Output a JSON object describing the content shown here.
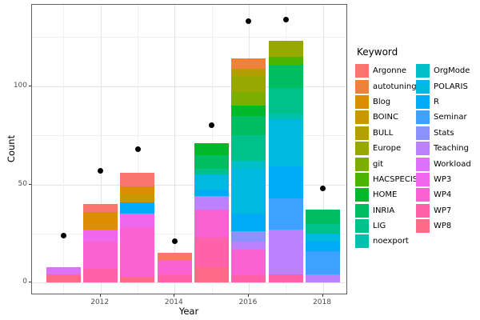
{
  "figure": {
    "x_axis": {
      "label": "Year",
      "major_ticks": [
        2012,
        2014,
        2016,
        2018
      ],
      "minor_ticks": [
        2011,
        2013,
        2015,
        2017
      ],
      "range": [
        2010.15,
        2018.68
      ]
    },
    "y_axis": {
      "label": "Count",
      "major_ticks": [
        0,
        50,
        100
      ],
      "minor_ticks": [
        25,
        75,
        125
      ],
      "range": [
        -6.4,
        141.4
      ]
    },
    "legend": {
      "title": "Keyword",
      "items": [
        {
          "name": "Argonne",
          "color": "#F8766D"
        },
        {
          "name": "autotuning",
          "color": "#EC823C"
        },
        {
          "name": "Blog",
          "color": "#DB8E00"
        },
        {
          "name": "BOINC",
          "color": "#C99800"
        },
        {
          "name": "BULL",
          "color": "#B3A000"
        },
        {
          "name": "Europe",
          "color": "#99A800"
        },
        {
          "name": "git",
          "color": "#7CAE00"
        },
        {
          "name": "HACSPECIS",
          "color": "#49B500"
        },
        {
          "name": "HOME",
          "color": "#00B92A"
        },
        {
          "name": "INRIA",
          "color": "#00BD61"
        },
        {
          "name": "LIG",
          "color": "#00C08B"
        },
        {
          "name": "noexport",
          "color": "#00C1AD"
        },
        {
          "name": "OrgMode",
          "color": "#00BFC8"
        },
        {
          "name": "POLARIS",
          "color": "#00B9E0"
        },
        {
          "name": "R",
          "color": "#00ABF5"
        },
        {
          "name": "Seminar",
          "color": "#3DA1FF"
        },
        {
          "name": "Stats",
          "color": "#8B93FF"
        },
        {
          "name": "Teaching",
          "color": "#BC81FF"
        },
        {
          "name": "Workload",
          "color": "#DC71FA"
        },
        {
          "name": "WP3",
          "color": "#EF67EC"
        },
        {
          "name": "WP4",
          "color": "#FA62D2"
        },
        {
          "name": "WP7",
          "color": "#FF62A8"
        },
        {
          "name": "WP8",
          "color": "#FF6A86"
        }
      ]
    }
  },
  "chart_data": {
    "type": "bar",
    "subtype": "stacked-bars-with-point-overlay",
    "title": "",
    "xlabel": "Year",
    "ylabel": "Count",
    "categories": [
      2011,
      2012,
      2013,
      2014,
      2015,
      2016,
      2017,
      2018
    ],
    "bar_width_years": 0.93,
    "ylim": [
      -6.4,
      141.4
    ],
    "grid": "on",
    "legend_position": "right",
    "stacks": [
      {
        "year": 2011,
        "total": 8,
        "segments": [
          {
            "keyword": "Workload",
            "value": 4
          },
          {
            "keyword": "WP8",
            "value": 4
          }
        ]
      },
      {
        "year": 2012,
        "total": 40,
        "segments": [
          {
            "keyword": "Argonne",
            "value": 4
          },
          {
            "keyword": "Blog",
            "value": 9
          },
          {
            "keyword": "WP3",
            "value": 6
          },
          {
            "keyword": "WP4",
            "value": 14
          },
          {
            "keyword": "WP7",
            "value": 7
          }
        ]
      },
      {
        "year": 2013,
        "total": 56,
        "segments": [
          {
            "keyword": "Argonne",
            "value": 7
          },
          {
            "keyword": "Blog",
            "value": 4
          },
          {
            "keyword": "BOINC",
            "value": 4
          },
          {
            "keyword": "R",
            "value": 6
          },
          {
            "keyword": "WP3",
            "value": 7
          },
          {
            "keyword": "WP4",
            "value": 25
          },
          {
            "keyword": "WP8",
            "value": 3
          }
        ]
      },
      {
        "year": 2014,
        "total": 15,
        "segments": [
          {
            "keyword": "Argonne",
            "value": 4
          },
          {
            "keyword": "WP4",
            "value": 7
          },
          {
            "keyword": "WP7",
            "value": 4
          }
        ]
      },
      {
        "year": 2015,
        "total": 71,
        "segments": [
          {
            "keyword": "HOME",
            "value": 6
          },
          {
            "keyword": "INRIA",
            "value": 7
          },
          {
            "keyword": "LIG",
            "value": 3
          },
          {
            "keyword": "POLARIS",
            "value": 8
          },
          {
            "keyword": "R",
            "value": 3
          },
          {
            "keyword": "Teaching",
            "value": 7
          },
          {
            "keyword": "WP4",
            "value": 14
          },
          {
            "keyword": "WP7",
            "value": 15
          },
          {
            "keyword": "WP8",
            "value": 8
          }
        ]
      },
      {
        "year": 2016,
        "total": 114,
        "segments": [
          {
            "keyword": "autotuning",
            "value": 5
          },
          {
            "keyword": "BULL",
            "value": 4
          },
          {
            "keyword": "Europe",
            "value": 8
          },
          {
            "keyword": "git",
            "value": 7
          },
          {
            "keyword": "HOME",
            "value": 5
          },
          {
            "keyword": "INRIA",
            "value": 10
          },
          {
            "keyword": "LIG",
            "value": 13
          },
          {
            "keyword": "OrgMode",
            "value": 4
          },
          {
            "keyword": "POLARIS",
            "value": 23
          },
          {
            "keyword": "R",
            "value": 9
          },
          {
            "keyword": "Stats",
            "value": 5
          },
          {
            "keyword": "Teaching",
            "value": 4
          },
          {
            "keyword": "WP4",
            "value": 13
          },
          {
            "keyword": "WP7",
            "value": 4
          }
        ]
      },
      {
        "year": 2017,
        "total": 123,
        "segments": [
          {
            "keyword": "Europe",
            "value": 8
          },
          {
            "keyword": "HACSPECIS",
            "value": 4
          },
          {
            "keyword": "INRIA",
            "value": 12
          },
          {
            "keyword": "LIG",
            "value": 13
          },
          {
            "keyword": "noexport",
            "value": 3
          },
          {
            "keyword": "POLARIS",
            "value": 24
          },
          {
            "keyword": "R",
            "value": 16
          },
          {
            "keyword": "Seminar",
            "value": 16
          },
          {
            "keyword": "Teaching",
            "value": 23
          },
          {
            "keyword": "WP7",
            "value": 4
          }
        ]
      },
      {
        "year": 2018,
        "total": 37,
        "segments": [
          {
            "keyword": "INRIA",
            "value": 7
          },
          {
            "keyword": "LIG",
            "value": 5
          },
          {
            "keyword": "POLARIS",
            "value": 4
          },
          {
            "keyword": "R",
            "value": 5
          },
          {
            "keyword": "Seminar",
            "value": 12
          },
          {
            "keyword": "Teaching",
            "value": 4
          }
        ]
      }
    ],
    "points": {
      "description": "black dot per year, above each bar",
      "x": [
        2011,
        2012,
        2013,
        2014,
        2015,
        2016,
        2017,
        2018
      ],
      "values": [
        24,
        57,
        68,
        21,
        80,
        133,
        134,
        48
      ]
    }
  }
}
